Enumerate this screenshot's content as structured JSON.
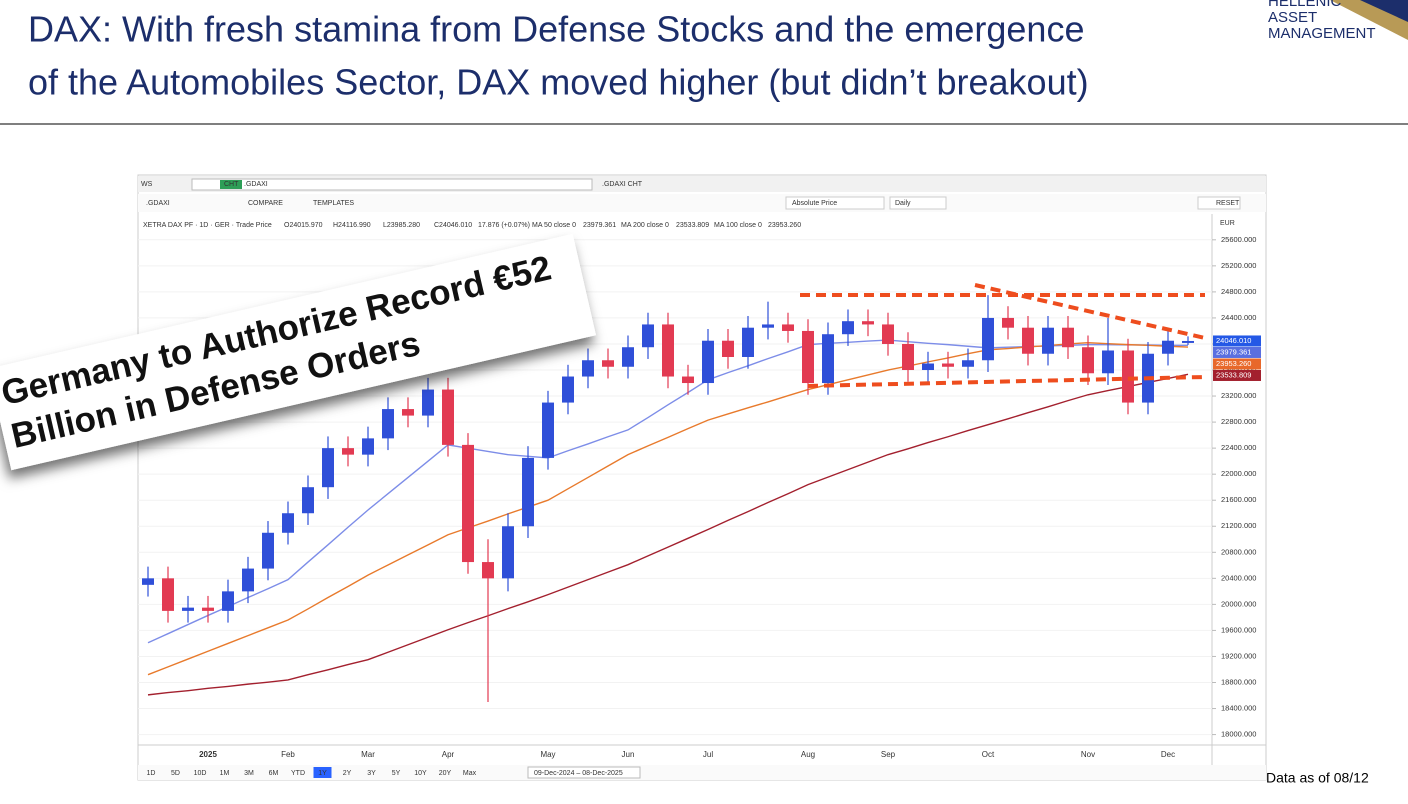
{
  "slide": {
    "title_line1": "DAX: With fresh stamina from Defense Stocks and the emergence",
    "title_line2": "of the Automobiles Sector, DAX moved higher (but didn’t breakout)",
    "logo": [
      "HELLENIC",
      "ASSET",
      "MANAGEMENT"
    ],
    "headline": [
      "Germany to Authorize Record €52",
      "Billion in Defense Orders"
    ],
    "footnote": "Data as of 08/12"
  },
  "toolbar": {
    "top": [
      "WS",
      "CHT",
      ".GDAXI",
      ".GDAXI CHT"
    ],
    "second": [
      ".GDAXI",
      "COMPARE",
      "TEMPLATES",
      "Absolute Price",
      "Daily",
      "RESET"
    ],
    "currency": "EUR",
    "info": "XETRA DAX PF · 1D · GER · Trade Price",
    "ohlc": [
      "O24015.970",
      "H24116.990",
      "L23985.280",
      "C24046.010",
      "17.876 (+0.07%)"
    ],
    "ranges": [
      "1D",
      "5D",
      "10D",
      "1M",
      "3M",
      "6M",
      "YTD",
      "1Y",
      "2Y",
      "3Y",
      "5Y",
      "10Y",
      "20Y",
      "Max"
    ],
    "date_range": "09-Dec-2024 – 08-Dec-2025"
  },
  "chart_data": {
    "type": "candlestick",
    "up_color": "#2f4fd8",
    "down_color": "#e23a52",
    "grid": true,
    "categories": [
      null,
      null,
      null,
      "2025",
      null,
      null,
      null,
      "Feb",
      null,
      null,
      null,
      "Mar",
      null,
      null,
      null,
      "Apr",
      null,
      null,
      null,
      null,
      "May",
      null,
      null,
      null,
      "Jun",
      null,
      null,
      null,
      "Jul",
      null,
      null,
      null,
      null,
      "Aug",
      null,
      null,
      null,
      "Sep",
      null,
      null,
      null,
      null,
      "Oct",
      null,
      null,
      null,
      null,
      "Nov",
      null,
      null,
      null,
      "Dec",
      null
    ],
    "open": [
      20300,
      20400,
      19900,
      19950,
      19900,
      20200,
      20550,
      21100,
      21400,
      21800,
      22400,
      22300,
      22550,
      23000,
      22900,
      23300,
      22450,
      20650,
      20400,
      21200,
      22250,
      23100,
      23500,
      23750,
      23650,
      23950,
      24300,
      23500,
      23400,
      24050,
      23800,
      24250,
      24300,
      24200,
      23400,
      24150,
      24350,
      24300,
      24000,
      23600,
      23700,
      23650,
      23750,
      24400,
      24250,
      23850,
      24250,
      23950,
      23550,
      23900,
      23100,
      23850,
      24015.97
    ],
    "high": [
      20580,
      20580,
      20130,
      20130,
      20380,
      20730,
      21280,
      21580,
      21980,
      22580,
      22580,
      22730,
      23180,
      23180,
      23480,
      23480,
      22630,
      21000,
      21400,
      22430,
      23280,
      23680,
      23930,
      23930,
      24130,
      24480,
      24480,
      23680,
      24230,
      24230,
      24430,
      24650,
      24480,
      24380,
      24330,
      24530,
      24530,
      24480,
      24180,
      23880,
      23880,
      23930,
      24750,
      24580,
      24430,
      24430,
      24430,
      24130,
      24400,
      24080,
      24030,
      24230,
      24116.99
    ],
    "low": [
      20120,
      19720,
      19720,
      19720,
      19720,
      20020,
      20370,
      20920,
      21220,
      21620,
      22120,
      22120,
      22370,
      22720,
      22720,
      22270,
      20470,
      18500,
      20200,
      21020,
      22070,
      22920,
      23320,
      23470,
      23470,
      23770,
      23320,
      23220,
      23220,
      23620,
      23620,
      24070,
      24020,
      23220,
      23220,
      23970,
      24120,
      23820,
      23420,
      23420,
      23470,
      23470,
      23570,
      24070,
      23670,
      23670,
      23770,
      23370,
      23370,
      22920,
      22920,
      23670,
      23985.28
    ],
    "close": [
      20400,
      19900,
      19950,
      19900,
      20200,
      20550,
      21100,
      21400,
      21800,
      22400,
      22300,
      22550,
      23000,
      22900,
      23300,
      22450,
      20650,
      20400,
      21200,
      22250,
      23100,
      23500,
      23750,
      23650,
      23950,
      24300,
      23500,
      23400,
      24050,
      23800,
      24250,
      24300,
      24200,
      23400,
      24150,
      24350,
      24300,
      24000,
      23600,
      23700,
      23650,
      23750,
      24400,
      24250,
      23850,
      24250,
      23950,
      23550,
      23900,
      23100,
      23850,
      24050,
      24046.01
    ],
    "series": [
      {
        "name": "MA 50 close 0",
        "color": "#7d8de8",
        "values": [
          19410,
          19550,
          19690,
          19830,
          19965,
          20105,
          20240,
          20380,
          20650,
          20915,
          21185,
          21450,
          21700,
          21950,
          22200,
          22450,
          22400,
          22350,
          22300,
          22275,
          22250,
          22360,
          22465,
          22575,
          22680,
          22870,
          23065,
          23255,
          23450,
          23560,
          23665,
          23775,
          23880,
          23990,
          24010,
          24025,
          24045,
          24060,
          24035,
          24010,
          23990,
          23965,
          23940,
          23950,
          23960,
          23970,
          23980,
          23990,
          23990,
          23985,
          23985,
          23980,
          23979
        ]
      },
      {
        "name": "MA 200 close 0",
        "color": "#a3202e",
        "values": [
          18610,
          18645,
          18675,
          18710,
          18740,
          18775,
          18805,
          18840,
          18920,
          18995,
          19075,
          19150,
          19265,
          19380,
          19495,
          19610,
          19720,
          19825,
          19935,
          20040,
          20150,
          20265,
          20380,
          20495,
          20610,
          20745,
          20880,
          21015,
          21150,
          21290,
          21425,
          21565,
          21700,
          21840,
          21955,
          22070,
          22185,
          22300,
          22390,
          22485,
          22575,
          22670,
          22760,
          22850,
          22945,
          23035,
          23130,
          23220,
          23285,
          23345,
          23410,
          23470,
          23534
        ]
      },
      {
        "name": "MA 100 close 0",
        "color": "#e87a2c",
        "values": [
          18920,
          19040,
          19160,
          19280,
          19400,
          19520,
          19640,
          19760,
          19930,
          20105,
          20275,
          20450,
          20605,
          20760,
          20915,
          21070,
          21175,
          21280,
          21390,
          21495,
          21600,
          21775,
          21950,
          22125,
          22300,
          22435,
          22565,
          22700,
          22830,
          22925,
          23020,
          23110,
          23205,
          23300,
          23375,
          23450,
          23525,
          23600,
          23660,
          23725,
          23785,
          23850,
          23910,
          23930,
          23955,
          23975,
          24000,
          24020,
          24005,
          23990,
          23980,
          23965,
          23953
        ]
      }
    ],
    "price_tags": [
      {
        "value": 24046.01,
        "label": "24046.010",
        "color": "#2458e6"
      },
      {
        "value": 23979.361,
        "label": "23979.361",
        "color": "#5a6fe0"
      },
      {
        "value": 23953.26,
        "label": "23953.260",
        "color": "#e8682a"
      },
      {
        "value": 23533.809,
        "label": "23533.809",
        "color": "#a3202e"
      }
    ],
    "ylim": [
      17840,
      25720
    ],
    "yticks": [
      {
        "value": 18000,
        "label": "18000.000"
      },
      {
        "value": 18400,
        "label": "18400.000"
      },
      {
        "value": 18800,
        "label": "18800.000"
      },
      {
        "value": 19200,
        "label": "19200.000"
      },
      {
        "value": 19600,
        "label": "19600.000"
      },
      {
        "value": 20000,
        "label": "20000.000"
      },
      {
        "value": 20400,
        "label": "20400.000"
      },
      {
        "value": 20800,
        "label": "20800.000"
      },
      {
        "value": 21200,
        "label": "21200.000"
      },
      {
        "value": 21600,
        "label": "21600.000"
      },
      {
        "value": 22000,
        "label": "22000.000"
      },
      {
        "value": 22400,
        "label": "22400.000"
      },
      {
        "value": 22800,
        "label": "22800.000"
      },
      {
        "value": 23200,
        "label": "23200.000"
      },
      {
        "value": 23600,
        "label": "23600.000"
      },
      {
        "value": 24000,
        "label": "24000.000"
      },
      {
        "value": 24400,
        "label": "24400.000"
      },
      {
        "value": 24800,
        "label": "24800.000"
      },
      {
        "value": 25200,
        "label": "25200.000"
      },
      {
        "value": 25600,
        "label": "25600.000"
      }
    ]
  }
}
